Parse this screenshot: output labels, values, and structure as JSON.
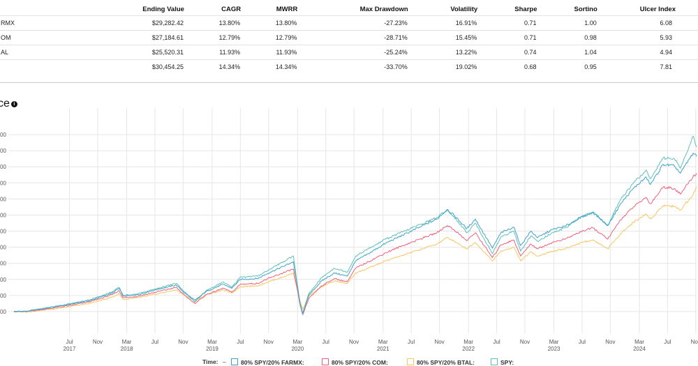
{
  "metrics_table": {
    "headers": [
      "",
      "Ending Value",
      "CAGR",
      "MWRR",
      "Max Drawdown",
      "Volatility",
      "Sharpe",
      "Sortino",
      "Ulcer Index"
    ],
    "rows": [
      [
        "RMX",
        "$29,282.42",
        "13.80%",
        "13.80%",
        "-27.23%",
        "16.91%",
        "0.71",
        "1.00",
        "6.08"
      ],
      [
        "OM",
        "$27,184.61",
        "12.79%",
        "12.79%",
        "-28.71%",
        "15.45%",
        "0.71",
        "0.98",
        "5.93"
      ],
      [
        "AL",
        "$25,520.31",
        "11.93%",
        "11.93%",
        "-25.24%",
        "13.22%",
        "0.74",
        "1.04",
        "4.94"
      ],
      [
        "",
        "$30,454.25",
        "14.34%",
        "14.34%",
        "-33.70%",
        "19.02%",
        "0.68",
        "0.95",
        "7.81"
      ]
    ]
  },
  "section": {
    "title": "ce",
    "info_icon": "info-icon"
  },
  "chart_data": {
    "type": "line",
    "title": "",
    "xlabel": "",
    "ylabel": "",
    "x_start": 2016.85,
    "x_end": 2024.84,
    "ylim": [
      8000,
      34000
    ],
    "y_ticks": [
      10000,
      12000,
      14000,
      16000,
      18000,
      20000,
      22000,
      24000,
      26000,
      28000,
      30000,
      32000
    ],
    "y_tick_labels": [
      "00",
      "00",
      "00",
      "00",
      "00",
      "00",
      "00",
      "00",
      "00",
      "00",
      "00",
      "00"
    ],
    "x_ticks": [
      {
        "month": "Jul",
        "year": "2017",
        "t": 2017.5
      },
      {
        "month": "Nov",
        "year": "",
        "t": 2017.83
      },
      {
        "month": "Mar",
        "year": "2018",
        "t": 2018.17
      },
      {
        "month": "Jul",
        "year": "",
        "t": 2018.5
      },
      {
        "month": "Nov",
        "year": "",
        "t": 2018.83
      },
      {
        "month": "Mar",
        "year": "2019",
        "t": 2019.17
      },
      {
        "month": "Jul",
        "year": "",
        "t": 2019.5
      },
      {
        "month": "Nov",
        "year": "",
        "t": 2019.83
      },
      {
        "month": "Mar",
        "year": "2020",
        "t": 2020.17
      },
      {
        "month": "Jul",
        "year": "",
        "t": 2020.5
      },
      {
        "month": "Nov",
        "year": "",
        "t": 2020.83
      },
      {
        "month": "Mar",
        "year": "2021",
        "t": 2021.17
      },
      {
        "month": "Jul",
        "year": "",
        "t": 2021.5
      },
      {
        "month": "Nov",
        "year": "",
        "t": 2021.83
      },
      {
        "month": "Mar",
        "year": "2022",
        "t": 2022.17
      },
      {
        "month": "Jul",
        "year": "",
        "t": 2022.5
      },
      {
        "month": "Nov",
        "year": "",
        "t": 2022.83
      },
      {
        "month": "Mar",
        "year": "2023",
        "t": 2023.17
      },
      {
        "month": "Jul",
        "year": "",
        "t": 2023.5
      },
      {
        "month": "Nov",
        "year": "",
        "t": 2023.83
      },
      {
        "month": "Mar",
        "year": "2024",
        "t": 2024.17
      },
      {
        "month": "Jul",
        "year": "",
        "t": 2024.5
      },
      {
        "month": "Nov",
        "year": "",
        "t": 2024.83
      }
    ],
    "series": [
      {
        "name": "80% SPY/20% FARMX:",
        "color": "#3ea1cc",
        "points": [
          [
            2016.85,
            10000
          ],
          [
            2017.0,
            10050
          ],
          [
            2017.25,
            10450
          ],
          [
            2017.5,
            10900
          ],
          [
            2017.75,
            11400
          ],
          [
            2018.0,
            12300
          ],
          [
            2018.08,
            12900
          ],
          [
            2018.13,
            11900
          ],
          [
            2018.3,
            12100
          ],
          [
            2018.5,
            12700
          ],
          [
            2018.75,
            13300
          ],
          [
            2018.85,
            12300
          ],
          [
            2018.97,
            11400
          ],
          [
            2019.1,
            12500
          ],
          [
            2019.3,
            13400
          ],
          [
            2019.4,
            12900
          ],
          [
            2019.5,
            14000
          ],
          [
            2019.7,
            14100
          ],
          [
            2019.85,
            14900
          ],
          [
            2020.0,
            15600
          ],
          [
            2020.12,
            16200
          ],
          [
            2020.2,
            11000
          ],
          [
            2020.23,
            9800
          ],
          [
            2020.3,
            12000
          ],
          [
            2020.45,
            13800
          ],
          [
            2020.6,
            14800
          ],
          [
            2020.75,
            14400
          ],
          [
            2020.85,
            16300
          ],
          [
            2021.0,
            17200
          ],
          [
            2021.2,
            18500
          ],
          [
            2021.4,
            19500
          ],
          [
            2021.6,
            20500
          ],
          [
            2021.8,
            21500
          ],
          [
            2021.92,
            22700
          ],
          [
            2022.0,
            22000
          ],
          [
            2022.15,
            20300
          ],
          [
            2022.25,
            21500
          ],
          [
            2022.45,
            17900
          ],
          [
            2022.55,
            19800
          ],
          [
            2022.7,
            20500
          ],
          [
            2022.78,
            18200
          ],
          [
            2022.9,
            20000
          ],
          [
            2022.98,
            19200
          ],
          [
            2023.15,
            20200
          ],
          [
            2023.3,
            20600
          ],
          [
            2023.5,
            21800
          ],
          [
            2023.63,
            22300
          ],
          [
            2023.8,
            20700
          ],
          [
            2023.95,
            23400
          ],
          [
            2024.1,
            25300
          ],
          [
            2024.25,
            26700
          ],
          [
            2024.3,
            25800
          ],
          [
            2024.45,
            28300
          ],
          [
            2024.58,
            28100
          ],
          [
            2024.65,
            27200
          ],
          [
            2024.8,
            29700
          ],
          [
            2024.84,
            29282
          ]
        ]
      },
      {
        "name": "80% SPY/20% COM:",
        "color": "#f0607a",
        "points": [
          [
            2016.85,
            10000
          ],
          [
            2017.0,
            10000
          ],
          [
            2017.25,
            10350
          ],
          [
            2017.5,
            10750
          ],
          [
            2017.75,
            11250
          ],
          [
            2018.0,
            12100
          ],
          [
            2018.08,
            12600
          ],
          [
            2018.13,
            11700
          ],
          [
            2018.3,
            11900
          ],
          [
            2018.5,
            12400
          ],
          [
            2018.75,
            13000
          ],
          [
            2018.85,
            12000
          ],
          [
            2018.97,
            11000
          ],
          [
            2019.1,
            12100
          ],
          [
            2019.3,
            12900
          ],
          [
            2019.4,
            12400
          ],
          [
            2019.5,
            13400
          ],
          [
            2019.7,
            13500
          ],
          [
            2019.85,
            14200
          ],
          [
            2020.0,
            14800
          ],
          [
            2020.12,
            15300
          ],
          [
            2020.2,
            10700
          ],
          [
            2020.23,
            9600
          ],
          [
            2020.3,
            11600
          ],
          [
            2020.45,
            13200
          ],
          [
            2020.6,
            14100
          ],
          [
            2020.75,
            13700
          ],
          [
            2020.85,
            15400
          ],
          [
            2021.0,
            16200
          ],
          [
            2021.2,
            17300
          ],
          [
            2021.4,
            18200
          ],
          [
            2021.6,
            19000
          ],
          [
            2021.8,
            19800
          ],
          [
            2021.92,
            20700
          ],
          [
            2022.0,
            20200
          ],
          [
            2022.15,
            18800
          ],
          [
            2022.25,
            19800
          ],
          [
            2022.45,
            16700
          ],
          [
            2022.55,
            18300
          ],
          [
            2022.7,
            18900
          ],
          [
            2022.78,
            16900
          ],
          [
            2022.9,
            18400
          ],
          [
            2022.98,
            17800
          ],
          [
            2023.15,
            18600
          ],
          [
            2023.3,
            19000
          ],
          [
            2023.5,
            20000
          ],
          [
            2023.63,
            20400
          ],
          [
            2023.8,
            19000
          ],
          [
            2023.95,
            21400
          ],
          [
            2024.1,
            23000
          ],
          [
            2024.25,
            24200
          ],
          [
            2024.3,
            23400
          ],
          [
            2024.45,
            25500
          ],
          [
            2024.58,
            25300
          ],
          [
            2024.65,
            24600
          ],
          [
            2024.8,
            26800
          ],
          [
            2024.84,
            27184
          ]
        ]
      },
      {
        "name": "80% SPY/20% BTAL:",
        "color": "#f6c660",
        "points": [
          [
            2016.85,
            10000
          ],
          [
            2017.0,
            9950
          ],
          [
            2017.25,
            10250
          ],
          [
            2017.5,
            10600
          ],
          [
            2017.75,
            11050
          ],
          [
            2018.0,
            11800
          ],
          [
            2018.08,
            12200
          ],
          [
            2018.13,
            11500
          ],
          [
            2018.3,
            11700
          ],
          [
            2018.5,
            12150
          ],
          [
            2018.75,
            12700
          ],
          [
            2018.85,
            12000
          ],
          [
            2018.97,
            11300
          ],
          [
            2019.1,
            12100
          ],
          [
            2019.3,
            12700
          ],
          [
            2019.4,
            12300
          ],
          [
            2019.5,
            13100
          ],
          [
            2019.7,
            13200
          ],
          [
            2019.85,
            13800
          ],
          [
            2020.0,
            14300
          ],
          [
            2020.12,
            14800
          ],
          [
            2020.2,
            11200
          ],
          [
            2020.23,
            10300
          ],
          [
            2020.3,
            11900
          ],
          [
            2020.45,
            13100
          ],
          [
            2020.6,
            13800
          ],
          [
            2020.75,
            13500
          ],
          [
            2020.85,
            14800
          ],
          [
            2021.0,
            15400
          ],
          [
            2021.2,
            16300
          ],
          [
            2021.4,
            17000
          ],
          [
            2021.6,
            17700
          ],
          [
            2021.8,
            18400
          ],
          [
            2021.92,
            19200
          ],
          [
            2022.0,
            18800
          ],
          [
            2022.15,
            17800
          ],
          [
            2022.25,
            18600
          ],
          [
            2022.45,
            16300
          ],
          [
            2022.55,
            17500
          ],
          [
            2022.7,
            18000
          ],
          [
            2022.78,
            16300
          ],
          [
            2022.9,
            17400
          ],
          [
            2022.98,
            16900
          ],
          [
            2023.15,
            17500
          ],
          [
            2023.3,
            17800
          ],
          [
            2023.5,
            18600
          ],
          [
            2023.63,
            18900
          ],
          [
            2023.8,
            17800
          ],
          [
            2023.95,
            19700
          ],
          [
            2024.1,
            21100
          ],
          [
            2024.25,
            22100
          ],
          [
            2024.3,
            21500
          ],
          [
            2024.45,
            23200
          ],
          [
            2024.58,
            23100
          ],
          [
            2024.65,
            22600
          ],
          [
            2024.8,
            24600
          ],
          [
            2024.84,
            25520
          ]
        ]
      },
      {
        "name": "SPY:",
        "color": "#5ec0b6",
        "points": [
          [
            2016.85,
            10000
          ],
          [
            2017.0,
            10050
          ],
          [
            2017.25,
            10500
          ],
          [
            2017.5,
            10950
          ],
          [
            2017.75,
            11500
          ],
          [
            2018.0,
            12450
          ],
          [
            2018.08,
            13000
          ],
          [
            2018.13,
            12000
          ],
          [
            2018.3,
            12200
          ],
          [
            2018.5,
            12800
          ],
          [
            2018.75,
            13500
          ],
          [
            2018.85,
            12400
          ],
          [
            2018.97,
            11200
          ],
          [
            2019.1,
            12600
          ],
          [
            2019.3,
            13700
          ],
          [
            2019.4,
            13000
          ],
          [
            2019.5,
            14300
          ],
          [
            2019.7,
            14400
          ],
          [
            2019.85,
            15300
          ],
          [
            2020.0,
            16200
          ],
          [
            2020.12,
            16900
          ],
          [
            2020.2,
            10800
          ],
          [
            2020.23,
            9700
          ],
          [
            2020.3,
            12200
          ],
          [
            2020.45,
            14200
          ],
          [
            2020.6,
            15400
          ],
          [
            2020.75,
            14900
          ],
          [
            2020.85,
            16900
          ],
          [
            2021.0,
            17800
          ],
          [
            2021.2,
            19000
          ],
          [
            2021.4,
            19900
          ],
          [
            2021.6,
            20800
          ],
          [
            2021.8,
            21700
          ],
          [
            2021.92,
            22600
          ],
          [
            2022.0,
            21800
          ],
          [
            2022.15,
            19800
          ],
          [
            2022.25,
            21000
          ],
          [
            2022.45,
            17200
          ],
          [
            2022.55,
            19300
          ],
          [
            2022.7,
            20000
          ],
          [
            2022.78,
            17500
          ],
          [
            2022.9,
            19400
          ],
          [
            2022.98,
            18700
          ],
          [
            2023.15,
            19800
          ],
          [
            2023.3,
            20400
          ],
          [
            2023.5,
            21800
          ],
          [
            2023.63,
            22400
          ],
          [
            2023.8,
            20700
          ],
          [
            2023.95,
            23900
          ],
          [
            2024.1,
            26000
          ],
          [
            2024.25,
            27600
          ],
          [
            2024.3,
            26500
          ],
          [
            2024.45,
            29100
          ],
          [
            2024.58,
            29000
          ],
          [
            2024.65,
            27800
          ],
          [
            2024.8,
            31800
          ],
          [
            2024.84,
            30454
          ]
        ]
      }
    ],
    "legend": {
      "time_label": "Time:",
      "time_value": "–",
      "items": [
        "80% SPY/20% FARMX:",
        "80% SPY/20% COM:",
        "80% SPY/20% BTAL:",
        "SPY:"
      ]
    }
  }
}
